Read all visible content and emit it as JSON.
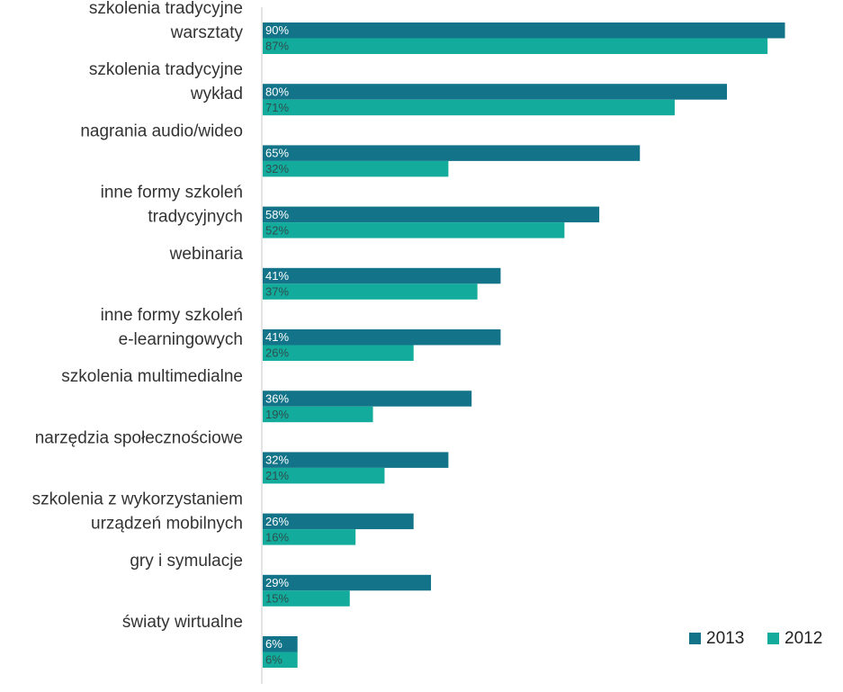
{
  "chart_data": {
    "type": "bar",
    "orientation": "horizontal",
    "categories": [
      [
        "szkolenia tradycyjne",
        "warsztaty"
      ],
      [
        "szkolenia tradycyjne",
        "wykład"
      ],
      [
        "nagrania audio/wideo"
      ],
      [
        "inne formy szkoleń",
        "tradycyjnych"
      ],
      [
        "webinaria"
      ],
      [
        "inne formy szkoleń",
        "e-learningowych"
      ],
      [
        "szkolenia multimedialne"
      ],
      [
        "narzędzia społecznościowe"
      ],
      [
        "szkolenia z wykorzystaniem",
        "urządzeń mobilnych"
      ],
      [
        "gry i symulacje"
      ],
      [
        "światy wirtualne"
      ]
    ],
    "series": [
      {
        "name": "2013",
        "color": "#137489",
        "label_color": "#ffffff",
        "values": [
          90,
          80,
          65,
          58,
          41,
          41,
          36,
          32,
          26,
          29,
          6
        ]
      },
      {
        "name": "2012",
        "color": "#12ab9c",
        "label_color": "#2f4f4f",
        "values": [
          87,
          71,
          32,
          52,
          37,
          26,
          19,
          21,
          16,
          15,
          6
        ]
      }
    ],
    "value_suffix": "%",
    "xlim": [
      0,
      100
    ],
    "grid": false,
    "legend_position": "bottom-right"
  }
}
